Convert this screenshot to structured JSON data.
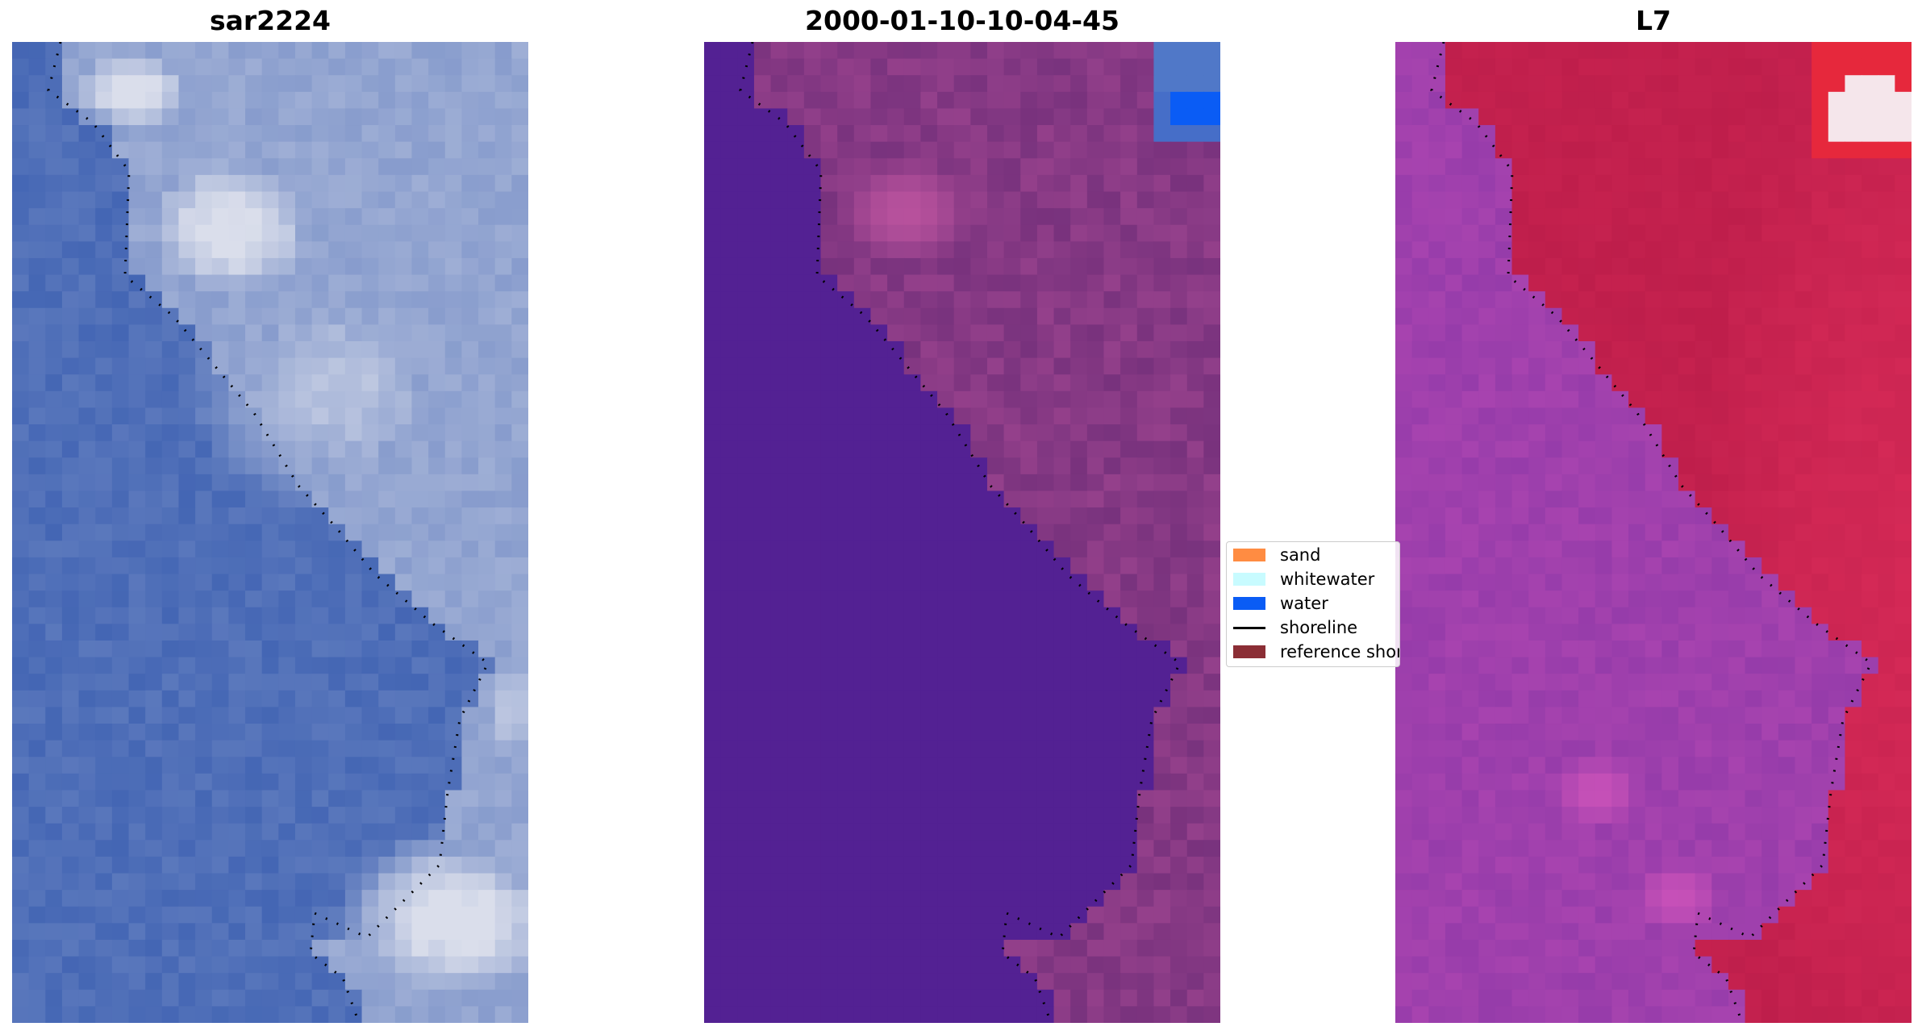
{
  "panels": [
    {
      "title": "sar2224",
      "style": "sar",
      "base_color": "#4466b4"
    },
    {
      "title": "2000-01-10-10-04-45",
      "style": "classified",
      "base_color": "#532193"
    },
    {
      "title": "L7",
      "style": "falsecolor",
      "base_color": "#9a3ca6"
    }
  ],
  "legend": {
    "items": [
      {
        "label": "sand",
        "color": "#ff8c42",
        "kind": "patch"
      },
      {
        "label": "whitewater",
        "color": "#c8fbff",
        "kind": "patch"
      },
      {
        "label": "water",
        "color": "#0a5cf5",
        "kind": "patch"
      },
      {
        "label": "shoreline",
        "color": "#000000",
        "kind": "line"
      },
      {
        "label": "reference shoreline",
        "color": "#8b2e35",
        "kind": "patch"
      }
    ]
  }
}
